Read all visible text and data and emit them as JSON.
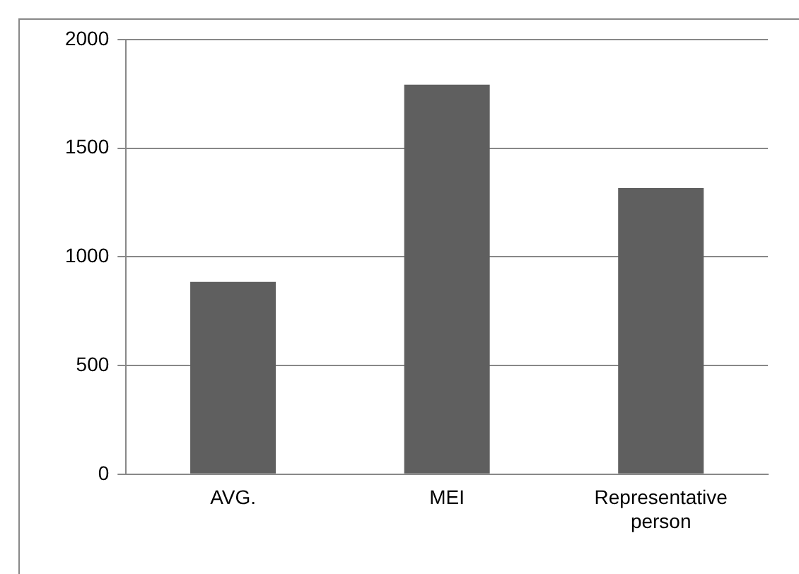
{
  "chart_data": {
    "type": "bar",
    "categories": [
      "AVG.",
      "MEI",
      "Representative person"
    ],
    "values": [
      885,
      1793,
      1317
    ],
    "color": "#5f5f5f",
    "ylim": [
      0,
      2000
    ],
    "yticks": [
      0,
      500,
      1000,
      1500,
      2000
    ],
    "grid": "y",
    "legend": false
  }
}
